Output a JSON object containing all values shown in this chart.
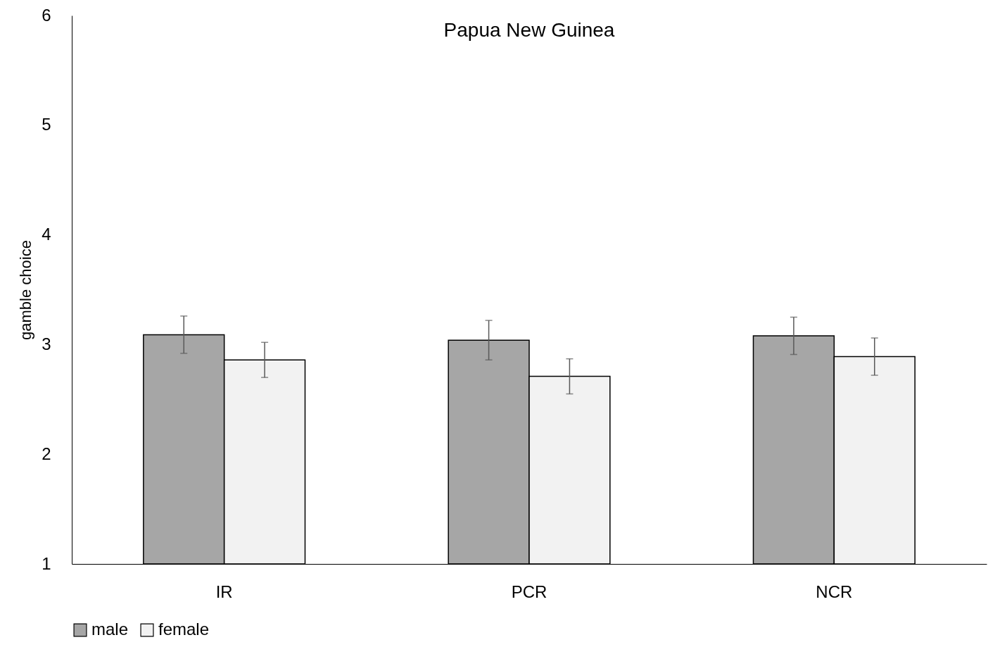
{
  "chart_data": {
    "type": "bar",
    "title": "Papua New Guinea",
    "ylabel": "gamble choice",
    "categories": [
      "IR",
      "PCR",
      "NCR"
    ],
    "series": [
      {
        "name": "male",
        "color": "#a6a6a6",
        "values": [
          3.09,
          3.04,
          3.08
        ],
        "errors": [
          0.17,
          0.18,
          0.17
        ]
      },
      {
        "name": "female",
        "color": "#f2f2f2",
        "values": [
          2.86,
          2.71,
          2.89
        ],
        "errors": [
          0.16,
          0.16,
          0.17
        ]
      }
    ],
    "ylim": [
      1,
      6
    ],
    "yticks": [
      1,
      2,
      3,
      4,
      5,
      6
    ],
    "grid": false,
    "legend": "bottom"
  }
}
